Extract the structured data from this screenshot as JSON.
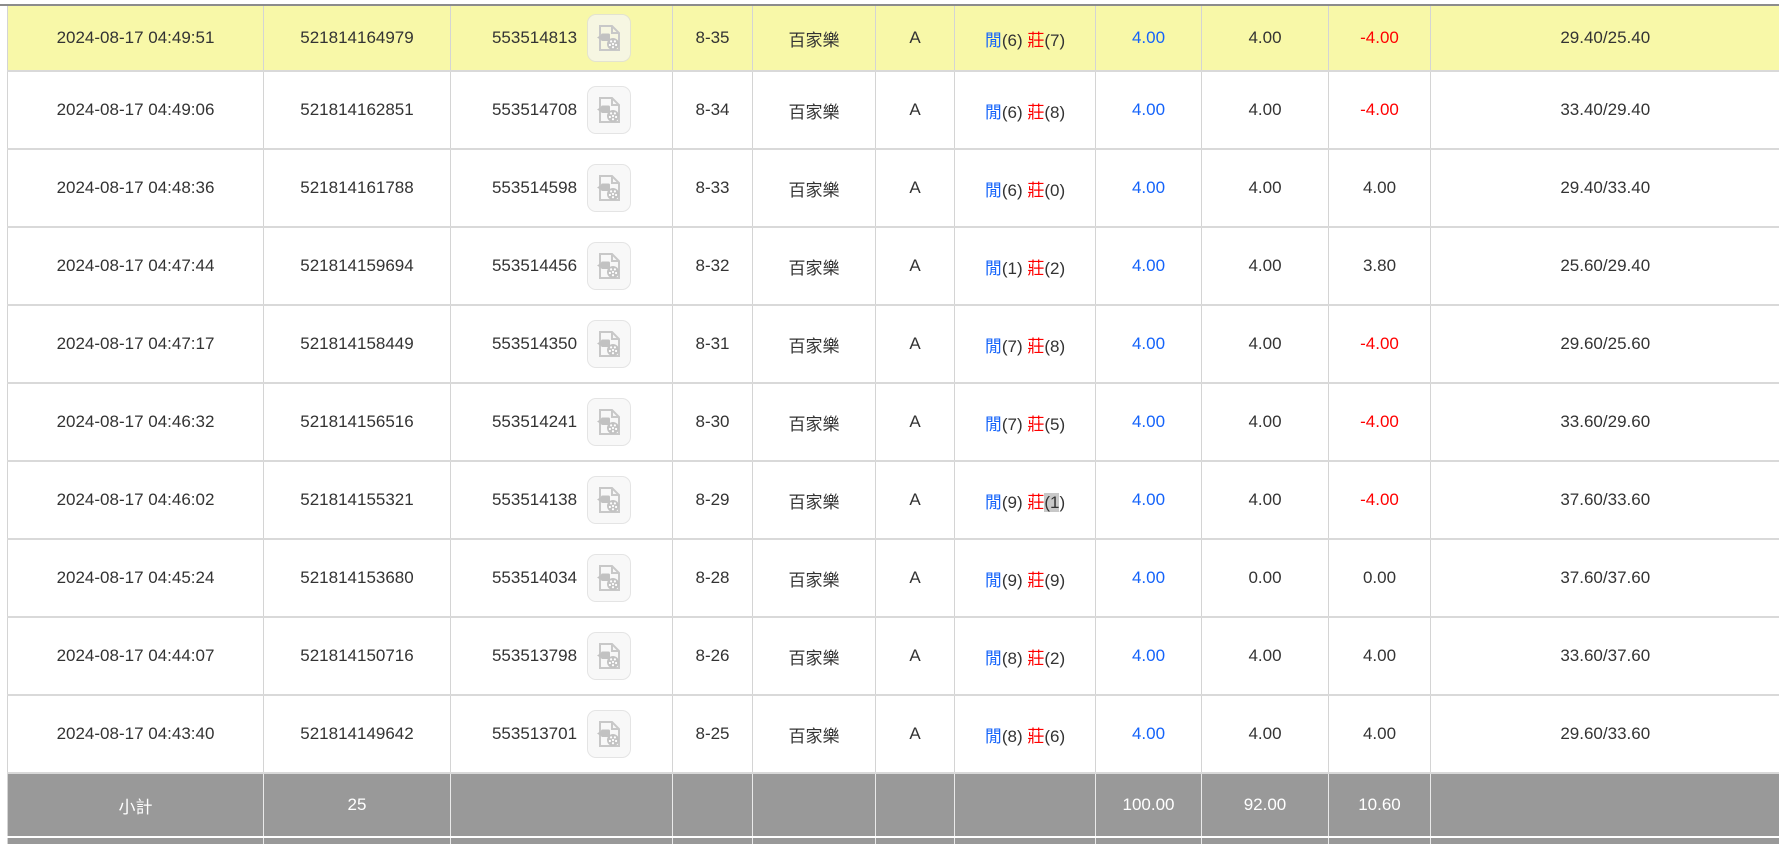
{
  "colors": {
    "highlight_row": "#f8f8a8",
    "player_blue": "#1463fa",
    "banker_red": "#ff0000",
    "negative_red": "#ff0000",
    "text": "#333333",
    "summary_bg": "#999999",
    "summary_text": "#ffffff",
    "row_border": "#d9d9d9",
    "top_border": "#8c8c8c",
    "selection_gray": "#c8c8c8",
    "icon_gray": "#c2c2c2"
  },
  "icons": {
    "video": "video-file-icon"
  },
  "table": {
    "rows": [
      {
        "time": "2024-08-17 04:49:51",
        "bet_id": "521814164979",
        "game_id": "553514813",
        "round": "8-35",
        "game": "百家樂",
        "table": "A",
        "result": {
          "player_label": "閒",
          "player_score": "(6)",
          "banker_label": "莊",
          "banker_score": "(7)",
          "banker_score_selected_chars": 0
        },
        "bet": "4.00",
        "valid_bet": "4.00",
        "win_loss": "-4.00",
        "balance": "29.40/25.40",
        "highlighted": true
      },
      {
        "time": "2024-08-17 04:49:06",
        "bet_id": "521814162851",
        "game_id": "553514708",
        "round": "8-34",
        "game": "百家樂",
        "table": "A",
        "result": {
          "player_label": "閒",
          "player_score": "(6)",
          "banker_label": "莊",
          "banker_score": "(8)",
          "banker_score_selected_chars": 0
        },
        "bet": "4.00",
        "valid_bet": "4.00",
        "win_loss": "-4.00",
        "balance": "33.40/29.40",
        "highlighted": false
      },
      {
        "time": "2024-08-17 04:48:36",
        "bet_id": "521814161788",
        "game_id": "553514598",
        "round": "8-33",
        "game": "百家樂",
        "table": "A",
        "result": {
          "player_label": "閒",
          "player_score": "(6)",
          "banker_label": "莊",
          "banker_score": "(0)",
          "banker_score_selected_chars": 0
        },
        "bet": "4.00",
        "valid_bet": "4.00",
        "win_loss": "4.00",
        "balance": "29.40/33.40",
        "highlighted": false
      },
      {
        "time": "2024-08-17 04:47:44",
        "bet_id": "521814159694",
        "game_id": "553514456",
        "round": "8-32",
        "game": "百家樂",
        "table": "A",
        "result": {
          "player_label": "閒",
          "player_score": "(1)",
          "banker_label": "莊",
          "banker_score": "(2)",
          "banker_score_selected_chars": 0
        },
        "bet": "4.00",
        "valid_bet": "4.00",
        "win_loss": "3.80",
        "balance": "25.60/29.40",
        "highlighted": false
      },
      {
        "time": "2024-08-17 04:47:17",
        "bet_id": "521814158449",
        "game_id": "553514350",
        "round": "8-31",
        "game": "百家樂",
        "table": "A",
        "result": {
          "player_label": "閒",
          "player_score": "(7)",
          "banker_label": "莊",
          "banker_score": "(8)",
          "banker_score_selected_chars": 0
        },
        "bet": "4.00",
        "valid_bet": "4.00",
        "win_loss": "-4.00",
        "balance": "29.60/25.60",
        "highlighted": false
      },
      {
        "time": "2024-08-17 04:46:32",
        "bet_id": "521814156516",
        "game_id": "553514241",
        "round": "8-30",
        "game": "百家樂",
        "table": "A",
        "result": {
          "player_label": "閒",
          "player_score": "(7)",
          "banker_label": "莊",
          "banker_score": "(5)",
          "banker_score_selected_chars": 0
        },
        "bet": "4.00",
        "valid_bet": "4.00",
        "win_loss": "-4.00",
        "balance": "33.60/29.60",
        "highlighted": false
      },
      {
        "time": "2024-08-17 04:46:02",
        "bet_id": "521814155321",
        "game_id": "553514138",
        "round": "8-29",
        "game": "百家樂",
        "table": "A",
        "result": {
          "player_label": "閒",
          "player_score": "(9)",
          "banker_label": "莊",
          "banker_score": "(1)",
          "banker_score_selected_chars": 2
        },
        "bet": "4.00",
        "valid_bet": "4.00",
        "win_loss": "-4.00",
        "balance": "37.60/33.60",
        "highlighted": false
      },
      {
        "time": "2024-08-17 04:45:24",
        "bet_id": "521814153680",
        "game_id": "553514034",
        "round": "8-28",
        "game": "百家樂",
        "table": "A",
        "result": {
          "player_label": "閒",
          "player_score": "(9)",
          "banker_label": "莊",
          "banker_score": "(9)",
          "banker_score_selected_chars": 0
        },
        "bet": "4.00",
        "valid_bet": "0.00",
        "win_loss": "0.00",
        "balance": "37.60/37.60",
        "highlighted": false
      },
      {
        "time": "2024-08-17 04:44:07",
        "bet_id": "521814150716",
        "game_id": "553513798",
        "round": "8-26",
        "game": "百家樂",
        "table": "A",
        "result": {
          "player_label": "閒",
          "player_score": "(8)",
          "banker_label": "莊",
          "banker_score": "(2)",
          "banker_score_selected_chars": 0
        },
        "bet": "4.00",
        "valid_bet": "4.00",
        "win_loss": "4.00",
        "balance": "33.60/37.60",
        "highlighted": false
      },
      {
        "time": "2024-08-17 04:43:40",
        "bet_id": "521814149642",
        "game_id": "553513701",
        "round": "8-25",
        "game": "百家樂",
        "table": "A",
        "result": {
          "player_label": "閒",
          "player_score": "(8)",
          "banker_label": "莊",
          "banker_score": "(6)",
          "banker_score_selected_chars": 0
        },
        "bet": "4.00",
        "valid_bet": "4.00",
        "win_loss": "4.00",
        "balance": "29.60/33.60",
        "highlighted": false
      }
    ],
    "summary": {
      "label": "小計",
      "count": "25",
      "bet_total": "100.00",
      "valid_bet_total": "92.00",
      "win_loss_total": "10.60"
    }
  }
}
